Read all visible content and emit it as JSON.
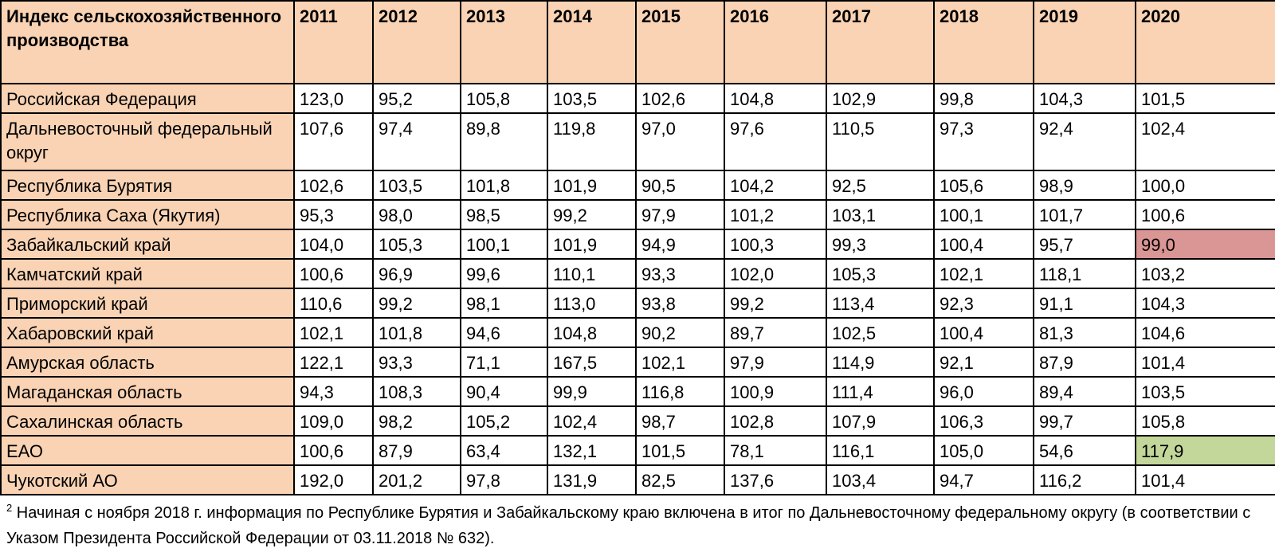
{
  "table": {
    "header": {
      "label": "Индекс сельскохозяйственного производства",
      "years": [
        "2011",
        "2012",
        "2013",
        "2014",
        "2015",
        "2016",
        "2017",
        "2018",
        "2019",
        "2020"
      ]
    },
    "rows": [
      {
        "region": "Российская Федерация",
        "values": [
          "123,0",
          "95,2",
          "105,8",
          "103,5",
          "102,6",
          "104,8",
          "102,9",
          "99,8",
          "104,3",
          "101,5"
        ]
      },
      {
        "region": "Дальневосточный федеральный округ",
        "values": [
          "107,6",
          "97,4",
          "89,8",
          "119,8",
          "97,0",
          "97,6",
          "110,5",
          "97,3",
          "92,4",
          "102,4"
        ]
      },
      {
        "region": "Республика Бурятия",
        "values": [
          "102,6",
          "103,5",
          "101,8",
          "101,9",
          "90,5",
          "104,2",
          "92,5",
          "105,6",
          "98,9",
          "100,0"
        ]
      },
      {
        "region": "Республика Саха (Якутия)",
        "values": [
          "95,3",
          "98,0",
          "98,5",
          "99,2",
          "97,9",
          "101,2",
          "103,1",
          "100,1",
          "101,7",
          "100,6"
        ]
      },
      {
        "region": "Забайкальский край",
        "values": [
          "104,0",
          "105,3",
          "100,1",
          "101,9",
          "94,9",
          "100,3",
          "99,3",
          "100,4",
          "95,7",
          "99,0"
        ]
      },
      {
        "region": "Камчатский край",
        "values": [
          "100,6",
          "96,9",
          "99,6",
          "110,1",
          "93,3",
          "102,0",
          "105,3",
          "102,1",
          "118,1",
          "103,2"
        ]
      },
      {
        "region": "Приморский край",
        "values": [
          "110,6",
          "99,2",
          "98,1",
          "113,0",
          "93,8",
          "99,2",
          "113,4",
          "92,3",
          "91,1",
          "104,3"
        ]
      },
      {
        "region": "Хабаровский край",
        "values": [
          "102,1",
          "101,8",
          "94,6",
          "104,8",
          "90,2",
          "89,7",
          "102,5",
          "100,4",
          "81,3",
          "104,6"
        ]
      },
      {
        "region": "Амурская область",
        "values": [
          "122,1",
          "93,3",
          "71,1",
          "167,5",
          "102,1",
          "97,9",
          "114,9",
          "92,1",
          "87,9",
          "101,4"
        ]
      },
      {
        "region": "Магаданская область",
        "values": [
          "94,3",
          "108,3",
          "90,4",
          "99,9",
          "116,8",
          "100,9",
          "111,4",
          "96,0",
          "89,4",
          "103,5"
        ]
      },
      {
        "region": "Сахалинская область",
        "values": [
          "109,0",
          "98,2",
          "105,2",
          "102,4",
          "98,7",
          "102,8",
          "107,9",
          "106,3",
          "99,7",
          "105,8"
        ]
      },
      {
        "region": "ЕАО",
        "values": [
          "100,6",
          "87,9",
          "63,4",
          "132,1",
          "101,5",
          "78,1",
          "116,1",
          "105,0",
          "54,6",
          "117,9"
        ]
      },
      {
        "region": "Чукотский АО",
        "values": [
          "192,0",
          "201,2",
          "97,8",
          "131,9",
          "82,5",
          "137,6",
          "103,4",
          "94,7",
          "116,2",
          "101,4"
        ]
      }
    ],
    "highlights": [
      {
        "row": 4,
        "col": 9,
        "color": "#da9694"
      },
      {
        "row": 11,
        "col": 9,
        "color": "#c4d79b"
      }
    ],
    "colors": {
      "header_bg": "#f9d3b4",
      "region_bg": "#f9d3b4",
      "border": "#000000"
    }
  },
  "footnote": {
    "marker": "2",
    "text": " Начиная с ноября 2018 г. информация по Республике Бурятия и Забайкальскому краю включена в итог по Дальневосточному федеральному округу (в соответствии с Указом Президента Российской Федерации от 03.11.2018 № 632)."
  }
}
